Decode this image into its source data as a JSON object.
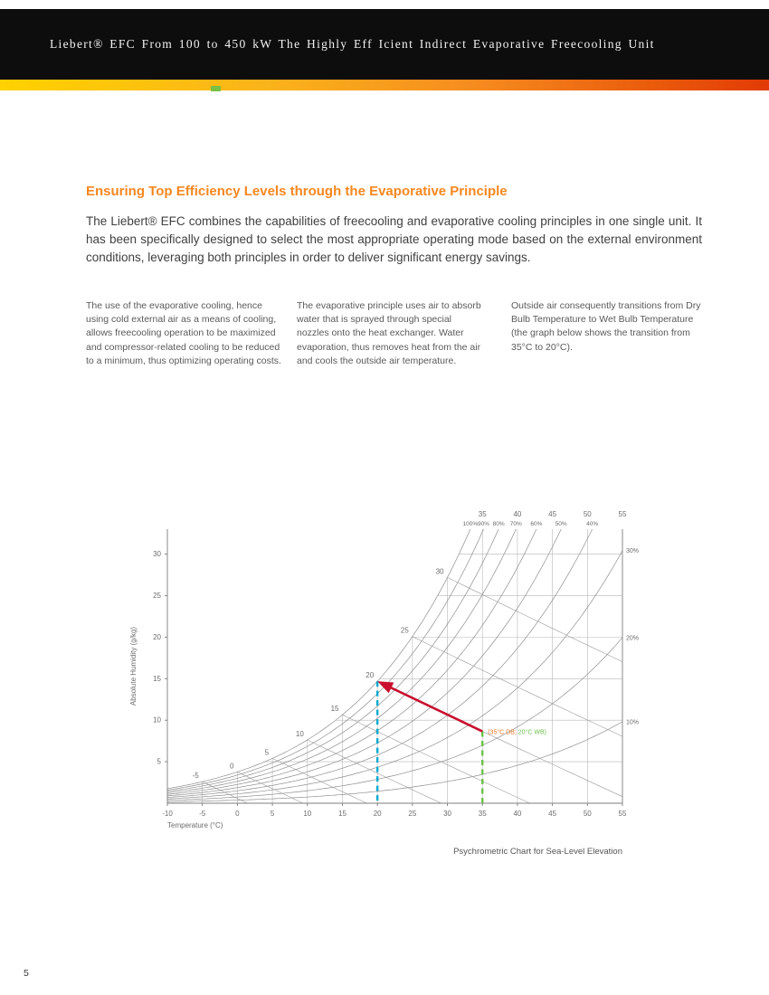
{
  "header": {
    "title": "Liebert® EFC From 100 to 450 kW The Highly Eff Icient Indirect Evaporative Freecooling Unit"
  },
  "brand": {
    "gradient_colors": [
      "#FFD200",
      "#F68B1F",
      "#E23A06"
    ],
    "marker_color": "#7AC143"
  },
  "content": {
    "heading": "Ensuring Top Efficiency Levels through the Evaporative Principle",
    "intro": "The Liebert® EFC combines the capabilities of freecooling and evaporative cooling principles in one single unit. It has been specifically designed to select the most appropriate operating mode based on the external environment conditions, leveraging both principles in order to deliver significant energy savings.",
    "columns": [
      "The use of the evaporative cooling, hence using cold external air as a means of cooling, allows freecooling operation to be maximized and compressor-related cooling to be reduced to a minimum, thus optimizing operating costs.",
      "The evaporative principle uses air to absorb water that is sprayed through special nozzles onto the heat exchanger. Water evaporation, thus removes heat from the air and cools the outside air temperature.",
      "Outside air consequently transitions from Dry Bulb Temperature to Wet Bulb Temperature (the graph below shows the transition from 35°C to 20°C)."
    ]
  },
  "chart_data": {
    "type": "line",
    "chart_kind": "psychrometric",
    "caption": "Psychrometric Chart for Sea-Level Elevation",
    "xlabel": "Temperature (°C)",
    "ylabel": "Absolute Humidity (g/kg)",
    "x_range": [
      -10,
      55
    ],
    "x_tick_step": 5,
    "y_range": [
      0,
      33
    ],
    "y_ticks": [
      5,
      10,
      15,
      20,
      25,
      30
    ],
    "grid": true,
    "rh_curves_percent": [
      100,
      90,
      80,
      70,
      60,
      50,
      40,
      30,
      20,
      10
    ],
    "rh_top_labels": [
      "100%",
      "90%",
      "80%",
      "70%",
      "60%",
      "50%",
      "40%"
    ],
    "rh_right_labels": [
      "30%",
      "20%",
      "10%"
    ],
    "top_axis_labels": [
      35,
      40,
      45,
      50,
      55
    ],
    "wetbulb_lines": [
      -5,
      0,
      5,
      10,
      15,
      20,
      25,
      30
    ],
    "transition": {
      "from_db_c": 35,
      "wet_bulb_c": 20,
      "annotation_db": "(35°C DB;",
      "annotation_wb": " 20°C WB)",
      "arrow_color": "#C8102E",
      "db_line_color": "#6CC24A",
      "wb_line_color": "#00A9CE",
      "annotation_db_color": "#E87722",
      "annotation_wb_color": "#6CC24A"
    }
  },
  "footer": {
    "page_number": "5"
  }
}
